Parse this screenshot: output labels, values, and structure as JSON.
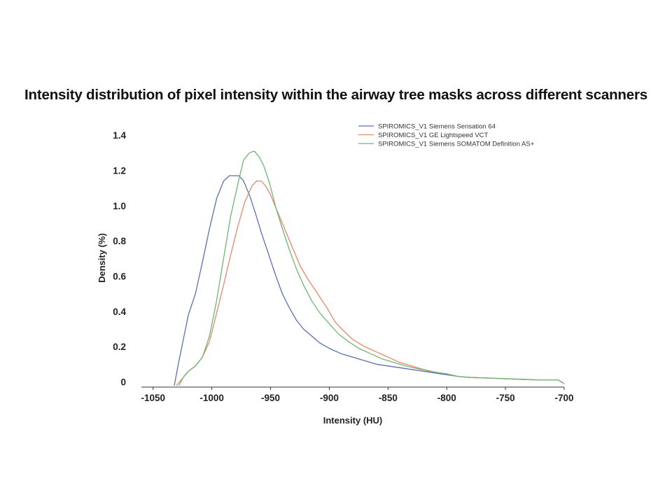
{
  "chart_data": {
    "type": "line",
    "title": "Intensity distribution of pixel intensity within the airway tree masks across different scanners",
    "xlabel": "Intensity (HU)",
    "ylabel": "Density (%)",
    "xlim": [
      -1060,
      -700
    ],
    "ylim": [
      -0.03,
      1.5
    ],
    "x_ticks": [
      -1050,
      -1000,
      -950,
      -900,
      -850,
      -800,
      -750,
      -700
    ],
    "x_tick_labels": [
      "-1050",
      "-1000",
      "-950",
      "-900",
      "-850",
      "-800",
      "-750",
      "-700"
    ],
    "y_ticks": [
      0,
      0.2,
      0.4,
      0.6,
      0.8,
      1.0,
      1.2,
      1.4
    ],
    "y_tick_labels": [
      "0",
      "0.2",
      "0.4",
      "0.6",
      "0.8",
      "1.0",
      "1.2",
      "1.4"
    ],
    "grid": false,
    "legend_position": "top-right",
    "series": [
      {
        "name": "SPIROMICS_V1 Siemens Sensation 64",
        "color": "#5b6fb3",
        "x": [
          -1032,
          -1028,
          -1020,
          -1014,
          -1008,
          -1002,
          -996,
          -990,
          -985,
          -981,
          -977,
          -973,
          -968,
          -963,
          -958,
          -952,
          -946,
          -940,
          -934,
          -928,
          -922,
          -915,
          -908,
          -900,
          -890,
          -880,
          -870,
          -860,
          -850,
          -840,
          -830,
          -820,
          -810,
          -800,
          -790,
          -780,
          -760,
          -740,
          -720,
          -705,
          -700
        ],
        "y": [
          -0.02,
          0.12,
          0.38,
          0.5,
          0.68,
          0.87,
          1.04,
          1.14,
          1.17,
          1.17,
          1.17,
          1.14,
          1.06,
          0.96,
          0.85,
          0.73,
          0.61,
          0.5,
          0.42,
          0.35,
          0.3,
          0.26,
          0.22,
          0.19,
          0.16,
          0.14,
          0.12,
          0.1,
          0.09,
          0.08,
          0.07,
          0.06,
          0.05,
          0.04,
          0.03,
          0.025,
          0.02,
          0.015,
          0.01,
          0.01,
          -0.01
        ]
      },
      {
        "name": "SPIROMICS_V1 GE Lightspeed VCT",
        "color": "#e8866a",
        "x": [
          -1030,
          -1025,
          -1020,
          -1014,
          -1008,
          -1002,
          -996,
          -990,
          -984,
          -978,
          -972,
          -966,
          -962,
          -958,
          -954,
          -950,
          -945,
          -940,
          -935,
          -930,
          -925,
          -918,
          -910,
          -902,
          -895,
          -888,
          -880,
          -870,
          -860,
          -850,
          -840,
          -830,
          -820,
          -810,
          -800,
          -790,
          -780,
          -760,
          -740,
          -720,
          -705,
          -700
        ],
        "y": [
          -0.02,
          0.02,
          0.06,
          0.09,
          0.14,
          0.23,
          0.39,
          0.55,
          0.72,
          0.88,
          1.02,
          1.11,
          1.14,
          1.14,
          1.11,
          1.06,
          0.98,
          0.9,
          0.82,
          0.74,
          0.66,
          0.58,
          0.5,
          0.42,
          0.34,
          0.29,
          0.24,
          0.2,
          0.17,
          0.14,
          0.11,
          0.09,
          0.07,
          0.055,
          0.045,
          0.03,
          0.025,
          0.02,
          0.015,
          0.01,
          0.01,
          -0.01
        ]
      },
      {
        "name": "SPIROMICS_V1 Siemens SOMATOM Definition AS+",
        "color": "#6fb574",
        "x": [
          -1028,
          -1024,
          -1020,
          -1014,
          -1008,
          -1002,
          -996,
          -990,
          -984,
          -978,
          -973,
          -968,
          -964,
          -960,
          -956,
          -951,
          -946,
          -940,
          -934,
          -928,
          -922,
          -915,
          -908,
          -900,
          -892,
          -884,
          -875,
          -865,
          -855,
          -845,
          -835,
          -825,
          -815,
          -805,
          -800,
          -790,
          -780,
          -760,
          -740,
          -720,
          -705,
          -700
        ],
        "y": [
          -0.02,
          0.03,
          0.06,
          0.09,
          0.14,
          0.26,
          0.46,
          0.7,
          0.94,
          1.12,
          1.26,
          1.3,
          1.31,
          1.28,
          1.23,
          1.13,
          1.0,
          0.87,
          0.75,
          0.64,
          0.55,
          0.46,
          0.39,
          0.33,
          0.27,
          0.23,
          0.19,
          0.16,
          0.13,
          0.11,
          0.09,
          0.075,
          0.06,
          0.05,
          0.045,
          0.03,
          0.025,
          0.02,
          0.015,
          0.01,
          0.01,
          -0.01
        ]
      }
    ]
  }
}
